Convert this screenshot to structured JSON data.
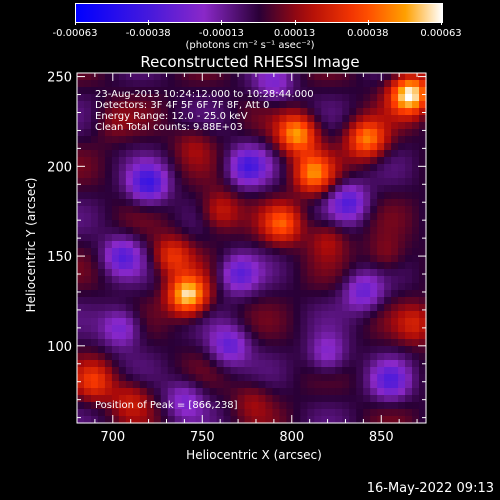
{
  "colorbar": {
    "ticks": [
      "-0.00063",
      "-0.00038",
      "-0.00013",
      "0.00013",
      "0.00038",
      "0.00063"
    ],
    "units": "(photons cm⁻² s⁻¹ asec⁻²)",
    "colors": [
      "#0000ff",
      "#8a1fd0",
      "#2a0035",
      "#c41a00",
      "#ff8a00",
      "#ffffff"
    ]
  },
  "chart_data": {
    "type": "heatmap",
    "title": "Reconstructed RHESSI Image",
    "xlabel": "Heliocentric X (arcsec)",
    "ylabel": "Heliocentric Y (arcsec)",
    "xlim": [
      680,
      875
    ],
    "ylim": [
      57,
      252
    ],
    "xticks": [
      "700",
      "750",
      "800",
      "850"
    ],
    "yticks": [
      "100",
      "150",
      "200",
      "250"
    ],
    "value_range": [
      -0.00063,
      0.00063
    ],
    "annotations": [
      "23-Aug-2013 10:24:12.000 to 10:28:44.000",
      "Detectors: 3F 4F 5F 6F 7F 8F, Att 0",
      "Energy Range: 12.0 - 25.0 keV",
      "Clean     Total counts: 9.88E+03"
    ],
    "peak_label": "Position of Peak = [866,238]",
    "peak": [
      866,
      238
    ],
    "sources": [
      {
        "x": 866,
        "y": 240,
        "value": 0.00063
      },
      {
        "x": 842,
        "y": 215,
        "value": 0.00045
      },
      {
        "x": 803,
        "y": 218,
        "value": 0.0005
      },
      {
        "x": 812,
        "y": 196,
        "value": 0.00042
      },
      {
        "x": 795,
        "y": 168,
        "value": 0.00035
      },
      {
        "x": 742,
        "y": 128,
        "value": 0.0006
      },
      {
        "x": 733,
        "y": 150,
        "value": 0.0003
      },
      {
        "x": 690,
        "y": 80,
        "value": 0.00028
      },
      {
        "x": 710,
        "y": 70,
        "value": 0.0002
      },
      {
        "x": 760,
        "y": 175,
        "value": 0.00025
      },
      {
        "x": 820,
        "y": 160,
        "value": 0.00018
      },
      {
        "x": 870,
        "y": 112,
        "value": 0.00022
      },
      {
        "x": 853,
        "y": 150,
        "value": 0.00015
      },
      {
        "x": 778,
        "y": 70,
        "value": 0.00012
      },
      {
        "x": 745,
        "y": 212,
        "value": 0.00012
      },
      {
        "x": 700,
        "y": 225,
        "value": 0.0001
      },
      {
        "x": 720,
        "y": 190,
        "value": -0.00038
      },
      {
        "x": 705,
        "y": 150,
        "value": -0.0003
      },
      {
        "x": 775,
        "y": 200,
        "value": -0.00034
      },
      {
        "x": 832,
        "y": 180,
        "value": -0.00032
      },
      {
        "x": 770,
        "y": 140,
        "value": -0.0003
      },
      {
        "x": 840,
        "y": 130,
        "value": -0.00028
      },
      {
        "x": 765,
        "y": 100,
        "value": -0.0003
      },
      {
        "x": 705,
        "y": 110,
        "value": -0.00028
      },
      {
        "x": 820,
        "y": 95,
        "value": -0.00025
      },
      {
        "x": 855,
        "y": 80,
        "value": -0.00028
      },
      {
        "x": 790,
        "y": 245,
        "value": -0.0002
      },
      {
        "x": 740,
        "y": 70,
        "value": -0.00022
      }
    ]
  },
  "footer": {
    "timestamp": "16-May-2022 09:13"
  }
}
